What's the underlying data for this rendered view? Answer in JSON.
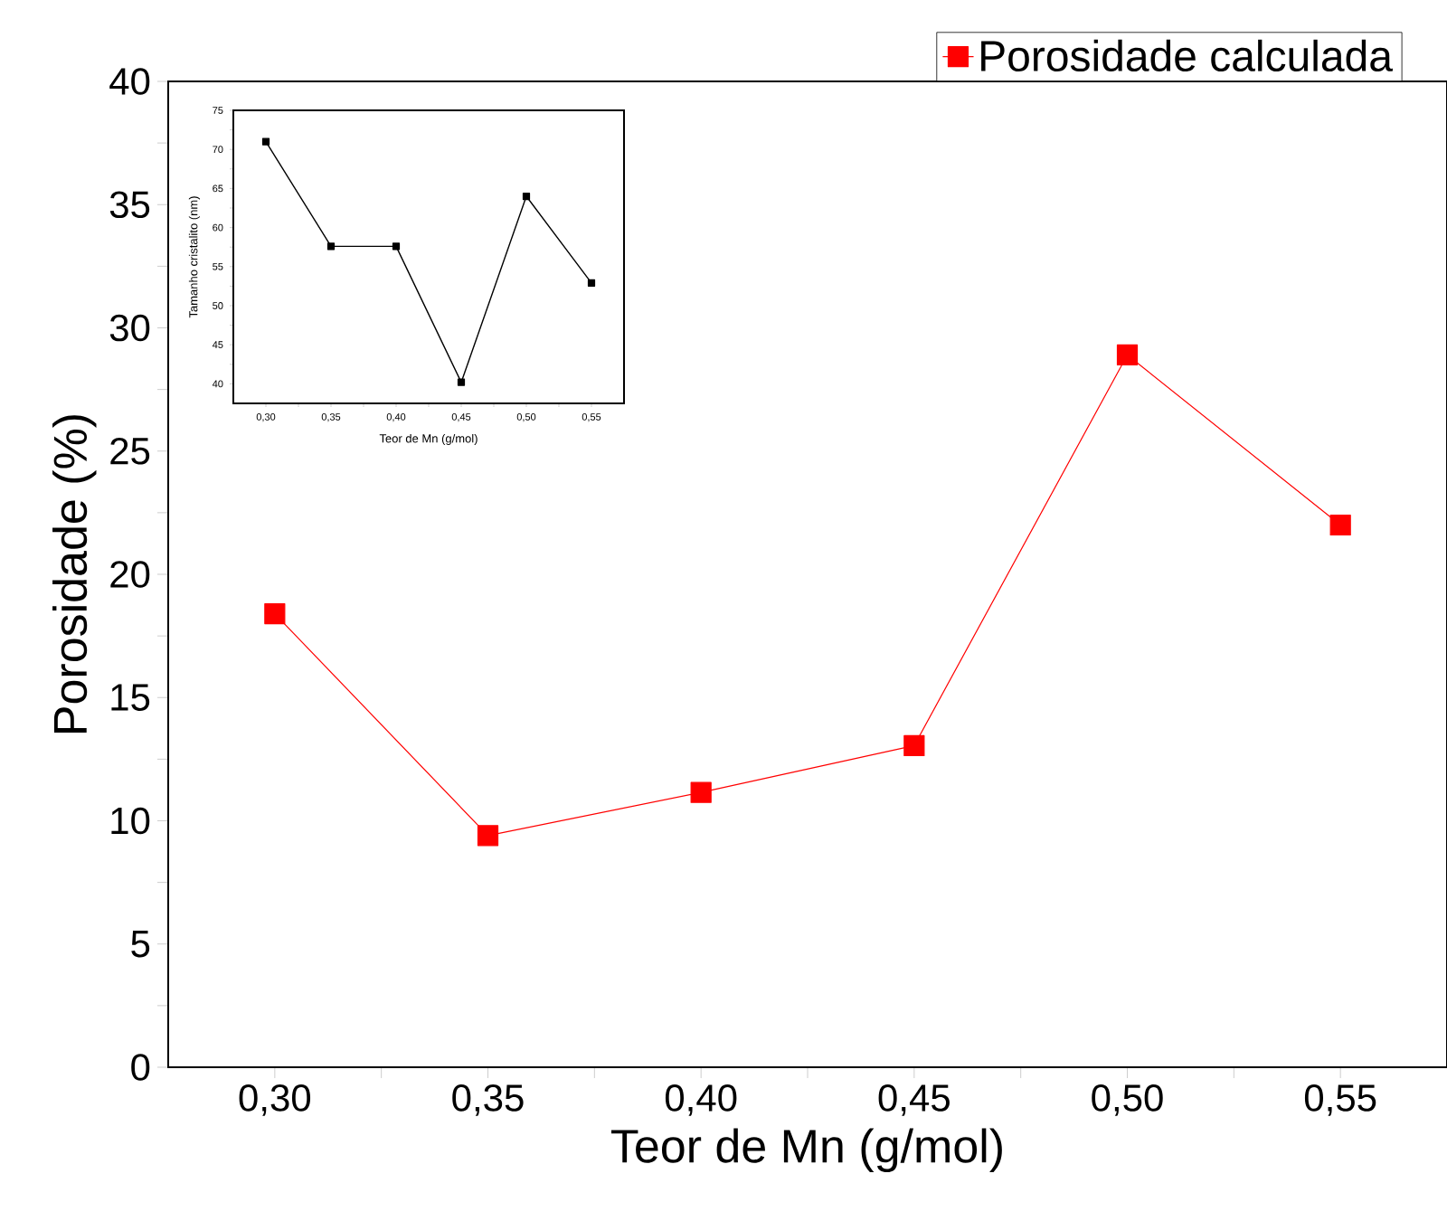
{
  "chart_data": [
    {
      "type": "line",
      "xlabel": "Teor de Mn (g/mol)",
      "ylabel": "Porosidade (%)",
      "x": [
        0.3,
        0.35,
        0.4,
        0.45,
        0.5,
        0.55
      ],
      "series": [
        {
          "name": "Porosidade calculada",
          "color": "#ff0000",
          "values": [
            18.4,
            9.4,
            11.15,
            13.05,
            28.9,
            22.0
          ]
        }
      ],
      "xlim": [
        0.275,
        0.575
      ],
      "ylim": [
        0,
        40
      ],
      "xticks": [
        {
          "value": 0.3,
          "label": "0,30"
        },
        {
          "value": 0.35,
          "label": "0,35"
        },
        {
          "value": 0.4,
          "label": "0,40"
        },
        {
          "value": 0.45,
          "label": "0,45"
        },
        {
          "value": 0.5,
          "label": "0,50"
        },
        {
          "value": 0.55,
          "label": "0,55"
        }
      ],
      "yticks": [
        0,
        5,
        10,
        15,
        20,
        25,
        30,
        35,
        40
      ],
      "marker": "square",
      "legend": "top right"
    },
    {
      "type": "line",
      "xlabel": "Teor de Mn (g/mol)",
      "ylabel": "Tamanho cristalito (nm)",
      "x": [
        0.3,
        0.35,
        0.4,
        0.45,
        0.5,
        0.55
      ],
      "series": [
        {
          "color": "#000000",
          "values": [
            71.0,
            57.6,
            57.6,
            40.2,
            64.0,
            52.9
          ]
        }
      ],
      "xlim": [
        0.275,
        0.575
      ],
      "ylim": [
        37.5,
        75
      ],
      "xticks": [
        {
          "value": 0.3,
          "label": "0,30"
        },
        {
          "value": 0.35,
          "label": "0,35"
        },
        {
          "value": 0.4,
          "label": "0,40"
        },
        {
          "value": 0.45,
          "label": "0,45"
        },
        {
          "value": 0.5,
          "label": "0,50"
        },
        {
          "value": 0.55,
          "label": "0,55"
        }
      ],
      "yticks": [
        40,
        45,
        50,
        55,
        60,
        65,
        70,
        75
      ],
      "marker": "square"
    }
  ]
}
